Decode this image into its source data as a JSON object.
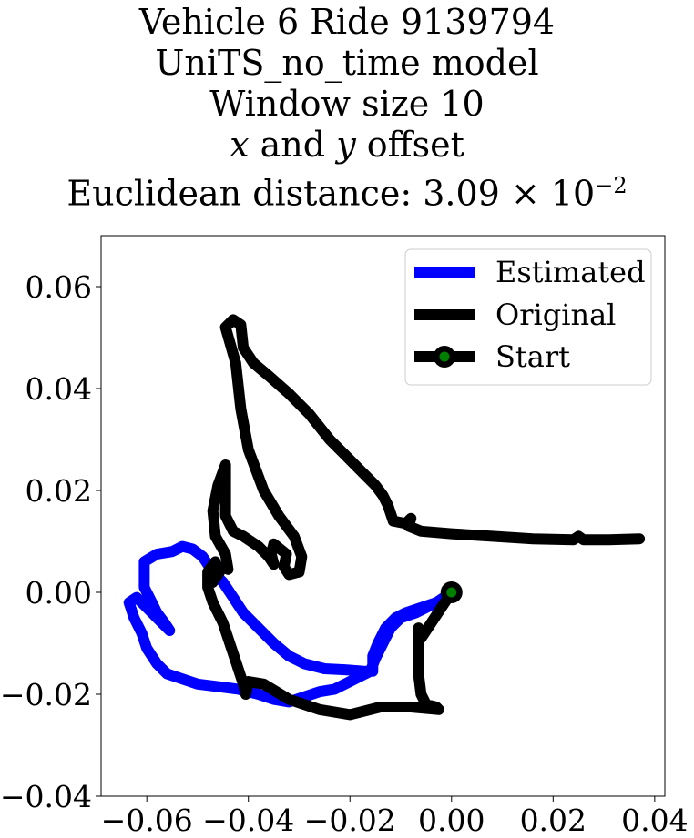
{
  "title_lines": [
    "Vehicle 6 Ride 9139794",
    "UniTS_no_time model",
    "Window size 10"
  ],
  "title_offset": {
    "x": "x",
    "and": " and ",
    "y": "y",
    "rest": " offset"
  },
  "title_distance": {
    "label": "Euclidean distance: 3.09",
    "times": "×",
    "base": "10",
    "exp": "−2"
  },
  "chart_data": {
    "type": "line",
    "xlim": [
      -0.069,
      0.042
    ],
    "ylim": [
      -0.04,
      0.07
    ],
    "xticks": [
      -0.06,
      -0.04,
      -0.02,
      0.0,
      0.02,
      0.04
    ],
    "xtick_labels": [
      "−0.06",
      "−0.04",
      "−0.02",
      "0.00",
      "0.02",
      "0.04"
    ],
    "yticks": [
      -0.04,
      -0.02,
      0.0,
      0.02,
      0.04,
      0.06
    ],
    "ytick_labels": [
      "−0.04",
      "−0.02",
      "0.00",
      "0.02",
      "0.04",
      "0.06"
    ],
    "grid": false,
    "legend_position": "upper right",
    "series": [
      {
        "name": "Estimated",
        "color": "#0000ff",
        "points": [
          [
            0.0,
            0.0
          ],
          [
            -0.003,
            -0.002
          ],
          [
            -0.007,
            -0.004
          ],
          [
            -0.01,
            -0.005
          ],
          [
            -0.012,
            -0.007
          ],
          [
            -0.0135,
            -0.01
          ],
          [
            -0.015,
            -0.013
          ],
          [
            -0.016,
            -0.0155
          ],
          [
            -0.018,
            -0.0165
          ],
          [
            -0.02,
            -0.0175
          ],
          [
            -0.023,
            -0.019
          ],
          [
            -0.026,
            -0.0195
          ],
          [
            -0.029,
            -0.0205
          ],
          [
            -0.032,
            -0.0215
          ],
          [
            -0.035,
            -0.021
          ],
          [
            -0.038,
            -0.02
          ],
          [
            -0.042,
            -0.019
          ],
          [
            -0.046,
            -0.0185
          ],
          [
            -0.05,
            -0.018
          ],
          [
            -0.053,
            -0.017
          ],
          [
            -0.056,
            -0.016
          ],
          [
            -0.058,
            -0.014
          ],
          [
            -0.06,
            -0.011
          ],
          [
            -0.061,
            -0.008
          ],
          [
            -0.0625,
            -0.005
          ],
          [
            -0.0635,
            -0.002
          ],
          [
            -0.062,
            -0.001
          ],
          [
            -0.0605,
            -0.0025
          ],
          [
            -0.059,
            -0.004
          ],
          [
            -0.058,
            -0.005
          ],
          [
            -0.057,
            -0.006
          ],
          [
            -0.0555,
            -0.0075
          ],
          [
            -0.0565,
            -0.006
          ],
          [
            -0.058,
            -0.004
          ],
          [
            -0.059,
            -0.002
          ],
          [
            -0.0605,
            0.001
          ],
          [
            -0.0605,
            0.004
          ],
          [
            -0.0605,
            0.006
          ],
          [
            -0.058,
            0.0075
          ],
          [
            -0.055,
            0.008
          ],
          [
            -0.053,
            0.009
          ],
          [
            -0.051,
            0.0085
          ],
          [
            -0.049,
            0.007
          ],
          [
            -0.047,
            0.004
          ],
          [
            -0.045,
            0.002
          ],
          [
            -0.043,
            -0.001
          ],
          [
            -0.041,
            -0.004
          ],
          [
            -0.038,
            -0.007
          ],
          [
            -0.035,
            -0.01
          ],
          [
            -0.032,
            -0.0125
          ],
          [
            -0.029,
            -0.014
          ],
          [
            -0.025,
            -0.015
          ],
          [
            -0.021,
            -0.0152
          ],
          [
            -0.017,
            -0.0155
          ],
          [
            -0.0155,
            -0.0155
          ],
          [
            -0.0155,
            -0.0125
          ],
          [
            -0.0145,
            -0.01
          ],
          [
            -0.013,
            -0.007
          ],
          [
            -0.011,
            -0.005
          ],
          [
            -0.009,
            -0.004
          ],
          [
            -0.006,
            -0.003
          ],
          [
            -0.003,
            -0.002
          ],
          [
            0.0,
            0.0
          ]
        ]
      },
      {
        "name": "Original",
        "color": "#000000",
        "points": [
          [
            0.0,
            0.0
          ],
          [
            -0.002,
            -0.003
          ],
          [
            -0.004,
            -0.006
          ],
          [
            -0.006,
            -0.009
          ],
          [
            -0.0065,
            -0.007
          ],
          [
            -0.0065,
            -0.011
          ],
          [
            -0.0065,
            -0.016
          ],
          [
            -0.006,
            -0.02
          ],
          [
            -0.005,
            -0.022
          ],
          [
            -0.003,
            -0.0225
          ],
          [
            -0.0025,
            -0.023
          ],
          [
            -0.008,
            -0.0225
          ],
          [
            -0.014,
            -0.0225
          ],
          [
            -0.02,
            -0.024
          ],
          [
            -0.026,
            -0.023
          ],
          [
            -0.032,
            -0.021
          ],
          [
            -0.037,
            -0.018
          ],
          [
            -0.04,
            -0.0175
          ],
          [
            -0.0405,
            -0.02
          ],
          [
            -0.041,
            -0.018
          ],
          [
            -0.043,
            -0.012
          ],
          [
            -0.045,
            -0.006
          ],
          [
            -0.047,
            -0.002
          ],
          [
            -0.048,
            0.001
          ],
          [
            -0.048,
            0.004
          ],
          [
            -0.0465,
            0.006
          ],
          [
            -0.0465,
            0.004
          ],
          [
            -0.047,
            0.002
          ],
          [
            -0.045,
            0.005
          ],
          [
            -0.044,
            0.0045
          ],
          [
            -0.0445,
            0.0075
          ],
          [
            -0.0465,
            0.011
          ],
          [
            -0.047,
            0.016
          ],
          [
            -0.046,
            0.021
          ],
          [
            -0.0445,
            0.025
          ],
          [
            -0.0445,
            0.02
          ],
          [
            -0.0445,
            0.015
          ],
          [
            -0.043,
            0.012
          ],
          [
            -0.041,
            0.011
          ],
          [
            -0.038,
            0.009
          ],
          [
            -0.036,
            0.007
          ],
          [
            -0.035,
            0.0055
          ],
          [
            -0.0355,
            0.0075
          ],
          [
            -0.035,
            0.0095
          ],
          [
            -0.0325,
            0.0075
          ],
          [
            -0.033,
            0.005
          ],
          [
            -0.032,
            0.0035
          ],
          [
            -0.03,
            0.004
          ],
          [
            -0.0295,
            0.007
          ],
          [
            -0.031,
            0.011
          ],
          [
            -0.034,
            0.015
          ],
          [
            -0.037,
            0.02
          ],
          [
            -0.04,
            0.028
          ],
          [
            -0.0415,
            0.036
          ],
          [
            -0.0425,
            0.045
          ],
          [
            -0.0445,
            0.052
          ],
          [
            -0.043,
            0.0535
          ],
          [
            -0.0415,
            0.0525
          ],
          [
            -0.041,
            0.048
          ],
          [
            -0.039,
            0.045
          ],
          [
            -0.036,
            0.0425
          ],
          [
            -0.032,
            0.039
          ],
          [
            -0.028,
            0.035
          ],
          [
            -0.024,
            0.03
          ],
          [
            -0.021,
            0.027
          ],
          [
            -0.018,
            0.024
          ],
          [
            -0.015,
            0.021
          ],
          [
            -0.0135,
            0.019
          ],
          [
            -0.0125,
            0.017
          ],
          [
            -0.0115,
            0.014
          ],
          [
            -0.009,
            0.0135
          ],
          [
            -0.008,
            0.0145
          ],
          [
            -0.0085,
            0.013
          ],
          [
            -0.006,
            0.012
          ],
          [
            0.0,
            0.0115
          ],
          [
            0.008,
            0.011
          ],
          [
            0.016,
            0.0105
          ],
          [
            0.024,
            0.0103
          ],
          [
            0.025,
            0.011
          ],
          [
            0.026,
            0.0103
          ],
          [
            0.031,
            0.0103
          ],
          [
            0.037,
            0.0105
          ]
        ]
      }
    ],
    "start_point": {
      "name": "Start",
      "x": 0.0,
      "y": 0.0,
      "fill": "#008000",
      "edge": "#000000"
    }
  }
}
